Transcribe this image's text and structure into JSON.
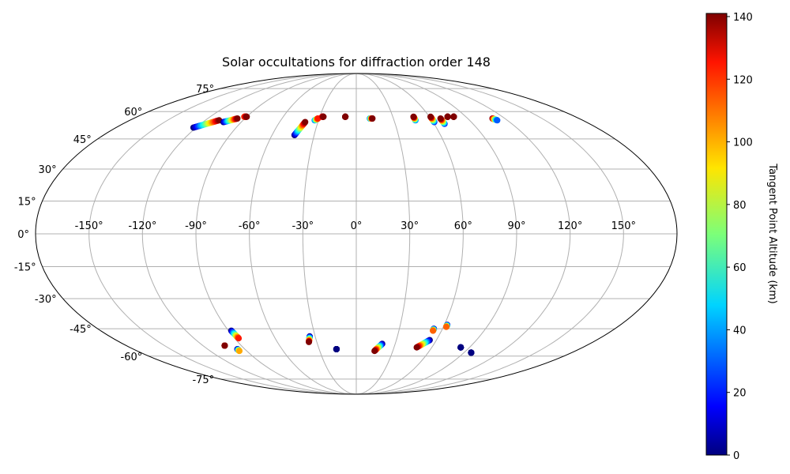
{
  "chart_data": {
    "type": "scatter",
    "projection": "mollweide",
    "title": "Solar occultations for diffraction order 148",
    "longitude_ticks": [
      "-150°",
      "-120°",
      "-90°",
      "-60°",
      "-30°",
      "0°",
      "30°",
      "60°",
      "90°",
      "120°",
      "150°"
    ],
    "latitude_ticks": [
      "75°",
      "60°",
      "45°",
      "30°",
      "15°",
      "0°",
      "-15°",
      "-30°",
      "-45°",
      "-60°",
      "-75°"
    ],
    "grid": true,
    "colorbar": {
      "label": "Tangent Point Altitude (km)",
      "range": [
        0,
        141
      ],
      "colormap": "jet",
      "ticks": [
        "0",
        "20",
        "40",
        "60",
        "80",
        "100",
        "120",
        "140"
      ]
    },
    "tracks": [
      {
        "lon_start": -122,
        "lat_start": 51,
        "lon_end": -109,
        "lat_end": 55,
        "alt_start": 0,
        "alt_end": 141
      },
      {
        "lon_start": -104,
        "lat_start": 54,
        "lon_end": -96,
        "lat_end": 56,
        "alt_start": 0,
        "alt_end": 141
      },
      {
        "lon_start": -92,
        "lat_start": 57,
        "lon_end": -90,
        "lat_end": 57,
        "alt_start": 110,
        "alt_end": 141
      },
      {
        "lon_start": -44,
        "lat_start": 47,
        "lon_end": -40,
        "lat_end": 54,
        "alt_start": 0,
        "alt_end": 141
      },
      {
        "lon_start": -33,
        "lat_start": 55,
        "lon_end": -31,
        "lat_end": 56,
        "alt_start": 30,
        "alt_end": 120
      },
      {
        "lon_start": -28,
        "lat_start": 57,
        "lon_end": -27,
        "lat_end": 57,
        "alt_start": 120,
        "alt_end": 141
      },
      {
        "lon_start": -9,
        "lat_start": 57,
        "lon_end": -9,
        "lat_end": 57,
        "alt_start": 141,
        "alt_end": 141
      },
      {
        "lon_start": 11,
        "lat_start": 56,
        "lon_end": 13,
        "lat_end": 56,
        "alt_start": 30,
        "alt_end": 141
      },
      {
        "lon_start": 47,
        "lat_start": 55,
        "lon_end": 47,
        "lat_end": 57,
        "alt_start": 30,
        "alt_end": 141
      },
      {
        "lon_start": 61,
        "lat_start": 54,
        "lon_end": 61,
        "lat_end": 57,
        "alt_start": 20,
        "alt_end": 141
      },
      {
        "lon_start": 68,
        "lat_start": 53,
        "lon_end": 68,
        "lat_end": 56,
        "alt_start": 20,
        "alt_end": 141
      },
      {
        "lon_start": 75,
        "lat_start": 57,
        "lon_end": 75,
        "lat_end": 57,
        "alt_start": 141,
        "alt_end": 141
      },
      {
        "lon_start": 80,
        "lat_start": 57,
        "lon_end": 80,
        "lat_end": 57,
        "alt_start": 141,
        "alt_end": 141
      },
      {
        "lon_start": 110,
        "lat_start": 56,
        "lon_end": 112,
        "lat_end": 55,
        "alt_start": 141,
        "alt_end": 30
      },
      {
        "lon_start": -88,
        "lat_start": -46,
        "lon_end": -87,
        "lat_end": -50,
        "alt_start": 0,
        "alt_end": 120
      },
      {
        "lon_start": -103,
        "lat_start": -54,
        "lon_end": -103,
        "lat_end": -54,
        "alt_start": 0,
        "alt_end": 141
      },
      {
        "lon_start": -96,
        "lat_start": -56,
        "lon_end": -96,
        "lat_end": -57,
        "alt_start": 0,
        "alt_end": 100
      },
      {
        "lon_start": -34,
        "lat_start": -49,
        "lon_end": -36,
        "lat_end": -52,
        "alt_start": 0,
        "alt_end": 141
      },
      {
        "lon_start": -16,
        "lat_start": -56,
        "lon_end": -16,
        "lat_end": -56,
        "alt_start": 0,
        "alt_end": 0
      },
      {
        "lon_start": 20,
        "lat_start": -53,
        "lon_end": 15,
        "lat_end": -57,
        "alt_start": 0,
        "alt_end": 141
      },
      {
        "lon_start": 55,
        "lat_start": -51,
        "lon_end": 48,
        "lat_end": -55,
        "alt_start": 0,
        "alt_end": 141
      },
      {
        "lon_start": 54,
        "lat_start": -45,
        "lon_end": 54,
        "lat_end": -46,
        "alt_start": 0,
        "alt_end": 110
      },
      {
        "lon_start": 62,
        "lat_start": -43,
        "lon_end": 62,
        "lat_end": -44,
        "alt_start": 0,
        "alt_end": 110
      },
      {
        "lon_start": 83,
        "lat_start": -55,
        "lon_end": 83,
        "lat_end": -55,
        "alt_start": 0,
        "alt_end": 0
      },
      {
        "lon_start": 96,
        "lat_start": -58,
        "lon_end": 96,
        "lat_end": -58,
        "alt_start": 0,
        "alt_end": 0
      }
    ]
  }
}
